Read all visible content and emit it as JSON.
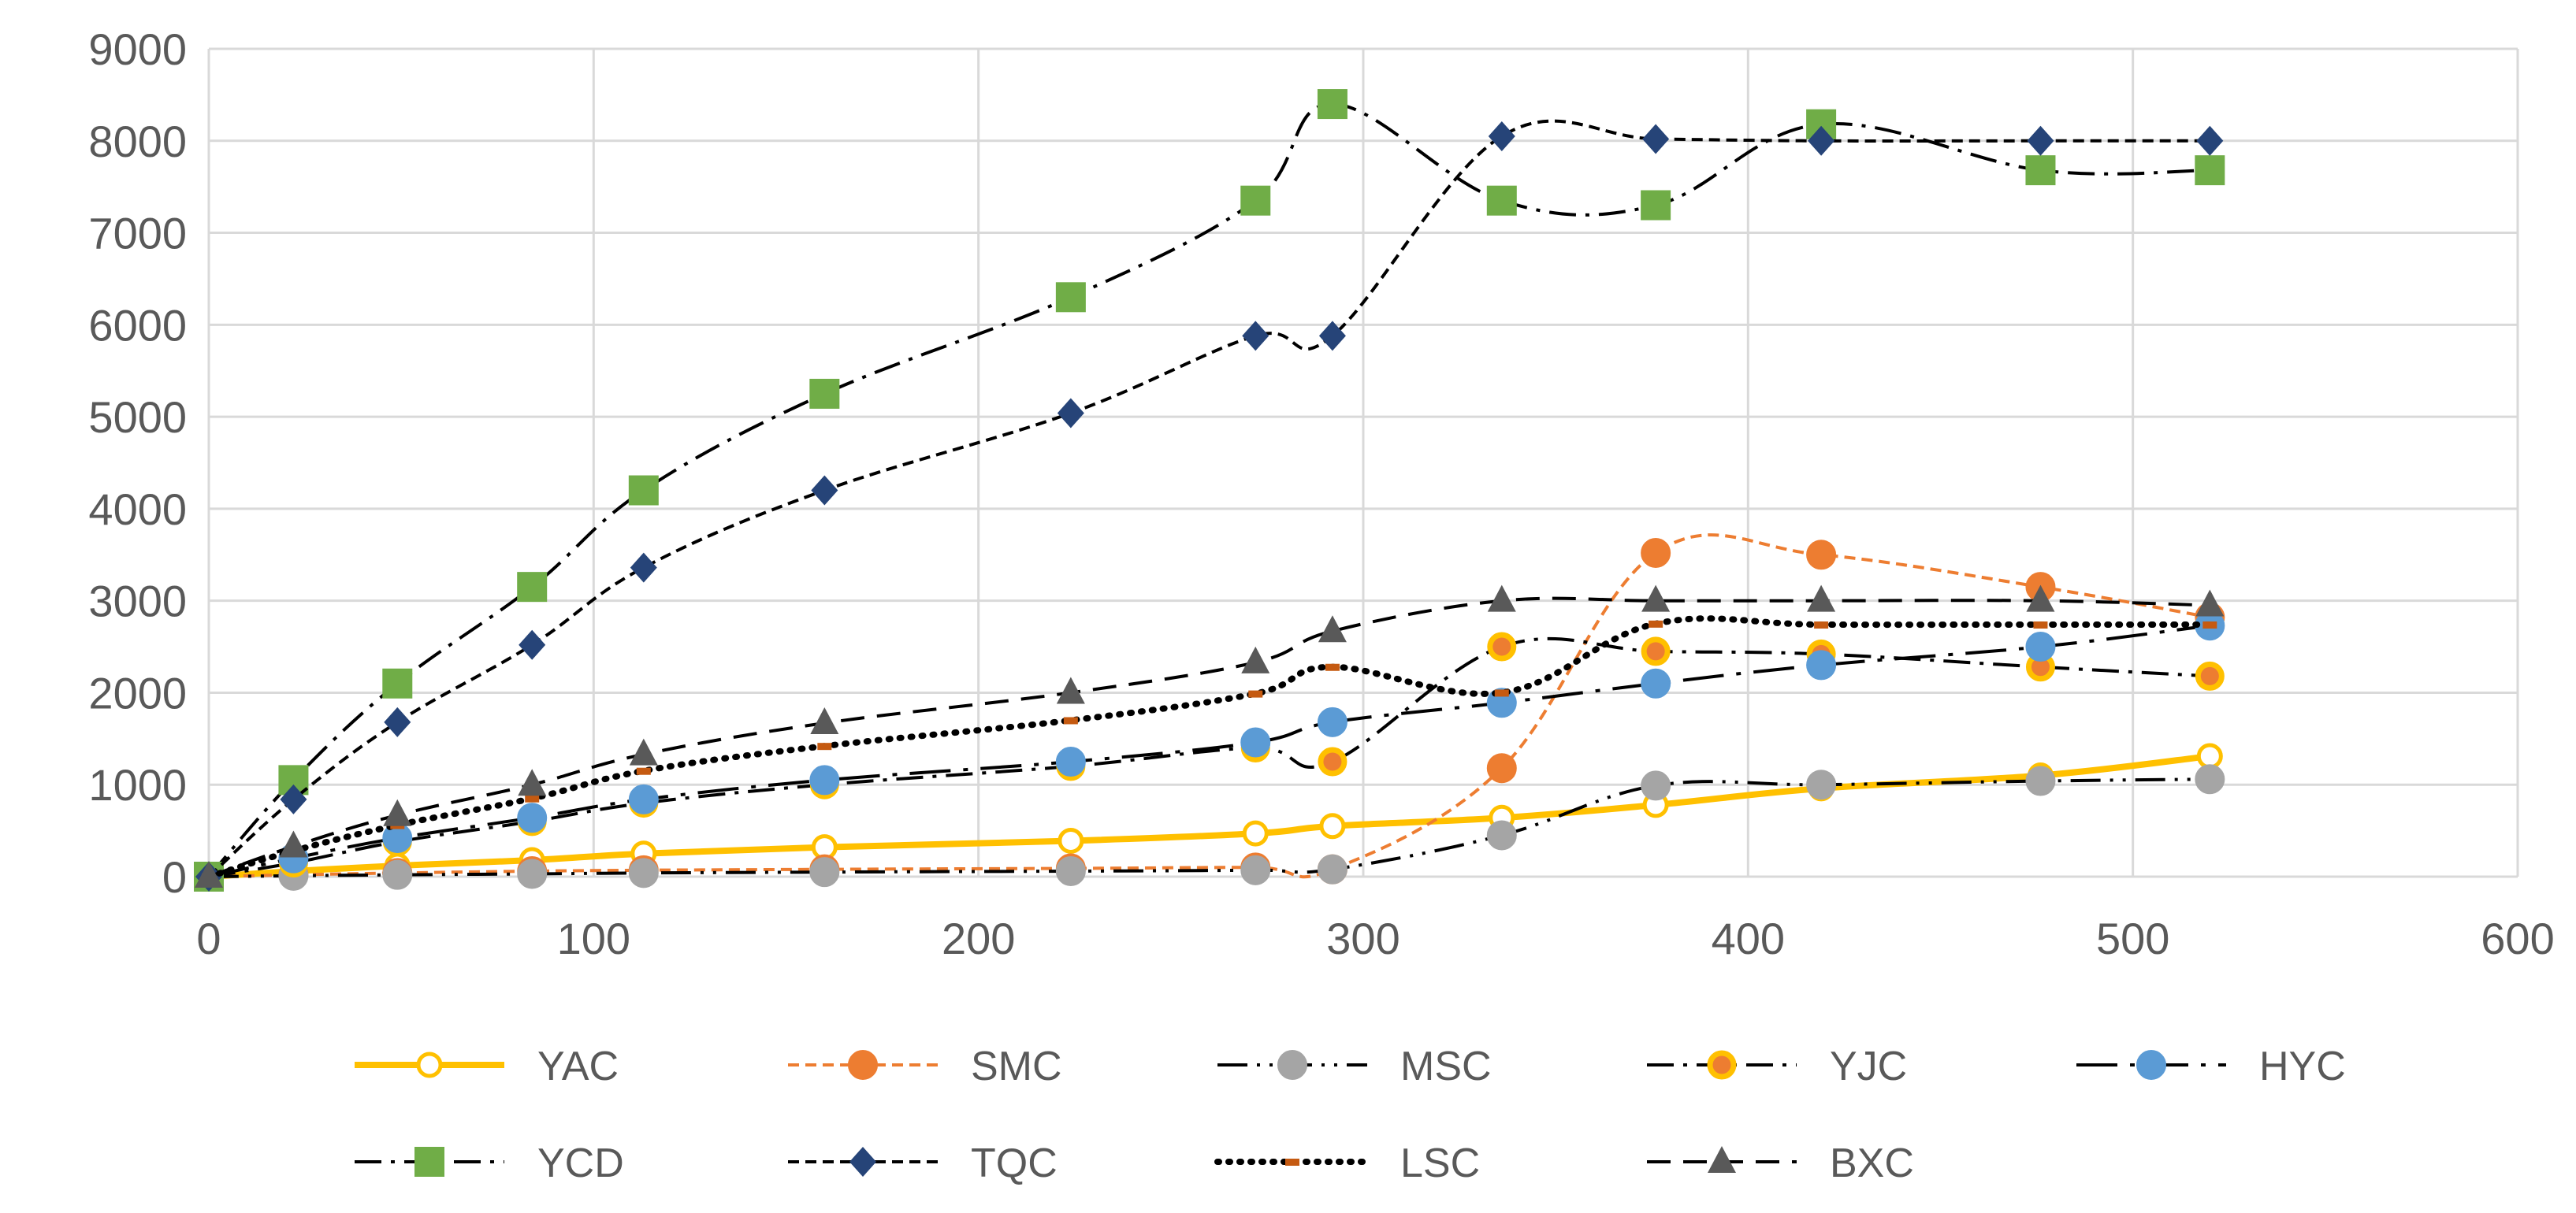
{
  "chart_data": {
    "type": "line",
    "title": "",
    "xlabel": "",
    "ylabel": "",
    "xlim": [
      0,
      600
    ],
    "ylim": [
      0,
      9000
    ],
    "xticks": [
      0,
      100,
      200,
      300,
      400,
      500,
      600
    ],
    "yticks": [
      0,
      1000,
      2000,
      3000,
      4000,
      5000,
      6000,
      7000,
      8000,
      9000
    ],
    "grid": true,
    "legend_position": "bottom",
    "x": [
      0,
      22,
      49,
      84,
      113,
      160,
      224,
      272,
      292,
      336,
      376,
      419,
      476,
      520
    ],
    "series": [
      {
        "name": "YAC",
        "color": "#FFC000",
        "line_style": "solid",
        "marker": "hollow-circle",
        "values": [
          0,
          60,
          120,
          180,
          250,
          320,
          390,
          470,
          550,
          640,
          780,
          960,
          1100,
          1310
        ]
      },
      {
        "name": "SMC",
        "color": "#ED7D31",
        "line_style": "short-dash",
        "marker": "circle",
        "values": [
          0,
          20,
          40,
          60,
          70,
          80,
          90,
          100,
          80,
          1180,
          3520,
          3500,
          3150,
          2820
        ]
      },
      {
        "name": "MSC",
        "color": "#A5A5A5",
        "line_style": "dash-dot-dot",
        "marker": "circle",
        "values": [
          0,
          10,
          20,
          30,
          40,
          50,
          60,
          70,
          80,
          450,
          990,
          1000,
          1040,
          1060
        ]
      },
      {
        "name": "YJC",
        "color": "#FFC000",
        "line_style": "dash-dot",
        "marker": "ringed-circle",
        "values": [
          0,
          150,
          380,
          600,
          800,
          1000,
          1200,
          1400,
          1250,
          2500,
          2450,
          2420,
          2280,
          2180
        ]
      },
      {
        "name": "HYC",
        "color": "#5B9BD5",
        "line_style": "long-dash-dot",
        "marker": "circle",
        "values": [
          0,
          200,
          420,
          640,
          840,
          1050,
          1250,
          1460,
          1680,
          1890,
          2100,
          2300,
          2500,
          2730
        ]
      },
      {
        "name": "YCD",
        "color": "#70AD47",
        "line_style": "dash-dot",
        "marker": "square",
        "values": [
          0,
          1050,
          2100,
          3150,
          4200,
          5250,
          6300,
          7350,
          8400,
          7350,
          7300,
          8180,
          7680,
          7680
        ]
      },
      {
        "name": "TQC",
        "color": "#264478",
        "line_style": "short-dash",
        "marker": "diamond",
        "values": [
          0,
          840,
          1680,
          2520,
          3360,
          4200,
          5040,
          5880,
          5880,
          8050,
          8020,
          8000,
          8000,
          8000
        ]
      },
      {
        "name": "LSC",
        "color": "#C55A11",
        "line_style": "dotted",
        "marker": "dash",
        "values": [
          0,
          280,
          560,
          850,
          1150,
          1420,
          1700,
          1990,
          2280,
          2000,
          2750,
          2740,
          2740,
          2740
        ]
      },
      {
        "name": "BXC",
        "color": "#595959",
        "line_style": "dashed",
        "marker": "triangle",
        "values": [
          0,
          330,
          670,
          1000,
          1330,
          1670,
          2000,
          2330,
          2670,
          3000,
          3000,
          3000,
          3000,
          2950
        ]
      }
    ]
  }
}
